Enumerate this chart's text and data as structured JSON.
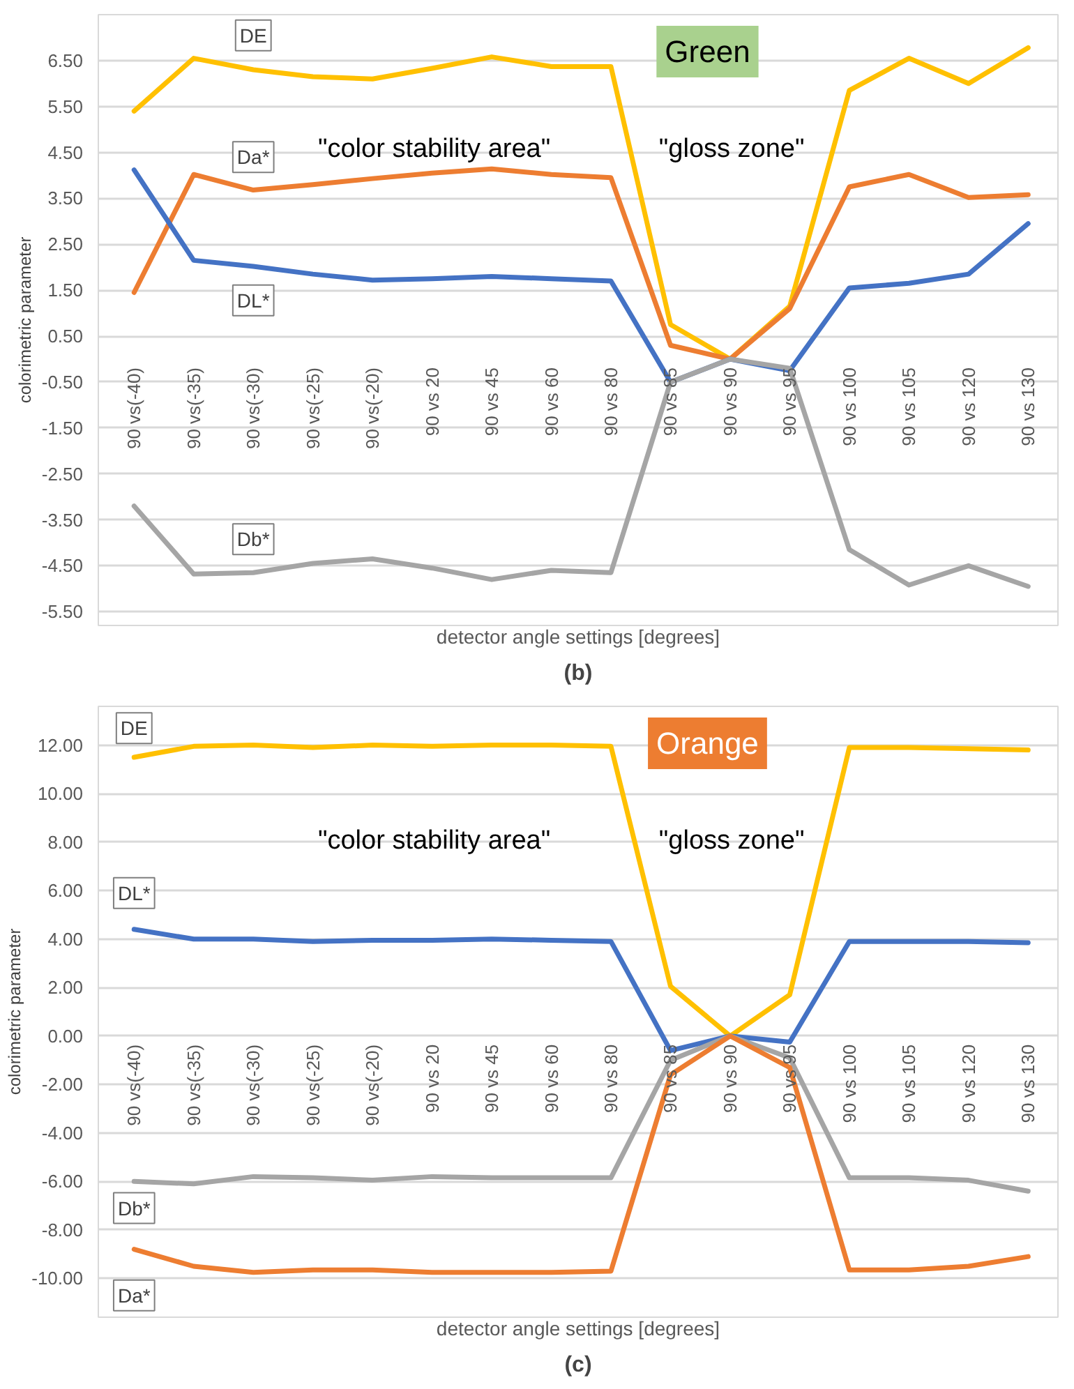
{
  "chart_data": [
    {
      "type": "line",
      "title": "Green",
      "xlabel": "detector angle settings [degrees]",
      "ylabel": "colorimetric parameter",
      "categories": [
        "90 vs(-40)",
        "90 vs(-35)",
        "90 vs(-30)",
        "90 vs(-25)",
        "90 vs(-20)",
        "90 vs 20",
        "90 vs 45",
        "90 vs 60",
        "90 vs 80",
        "90 vs 85",
        "90 vs 90",
        "90 vs 95",
        "90 vs 100",
        "90 vs 105",
        "90 vs 120",
        "90 vs 130"
      ],
      "series": [
        {
          "color": "#ffc000",
          "values": [
            5.4,
            6.55,
            6.3,
            6.15,
            6.1,
            6.33,
            6.58,
            6.37,
            6.37,
            0.75,
            0.0,
            1.15,
            5.85,
            6.55,
            6.0,
            6.78
          ]
        },
        {
          "color": "#ed7d31",
          "values": [
            1.45,
            4.02,
            3.68,
            3.8,
            3.93,
            4.05,
            4.14,
            4.02,
            3.95,
            0.3,
            0.0,
            1.1,
            3.75,
            4.02,
            3.52,
            3.58
          ]
        },
        {
          "color": "#4472c4",
          "values": [
            4.12,
            2.15,
            2.02,
            1.85,
            1.72,
            1.75,
            1.8,
            1.75,
            1.7,
            -0.5,
            0.0,
            -0.25,
            1.55,
            1.65,
            1.85,
            2.95
          ]
        },
        {
          "color": "#a5a5a5",
          "values": [
            -3.2,
            -4.68,
            -4.65,
            -4.45,
            -4.35,
            -4.55,
            -4.8,
            -4.6,
            -4.65,
            -0.5,
            0.0,
            -0.2,
            -4.15,
            -4.92,
            -4.5,
            -4.95
          ]
        }
      ],
      "ylim": [
        -5.8,
        7.5
      ],
      "yticks": [
        {
          "value": -5.5,
          "label": "-5.50"
        },
        {
          "value": -4.5,
          "label": "-4.50"
        },
        {
          "value": -3.5,
          "label": "-3.50"
        },
        {
          "value": -2.5,
          "label": "-2.50"
        },
        {
          "value": -1.5,
          "label": "-1.50"
        },
        {
          "value": -0.5,
          "label": "-0.50"
        },
        {
          "value": 0.5,
          "label": "0.50"
        },
        {
          "value": 1.5,
          "label": "1.50"
        },
        {
          "value": 2.5,
          "label": "2.50"
        },
        {
          "value": 3.5,
          "label": "3.50"
        },
        {
          "value": 4.5,
          "label": "4.50"
        },
        {
          "value": 5.5,
          "label": "5.50"
        },
        {
          "value": 6.5,
          "label": "6.50"
        }
      ],
      "grid": "y",
      "annotations": [
        {
          "text": "DE",
          "x": "90 vs(-30)",
          "y": 7.05
        },
        {
          "text": "Da*",
          "x": "90 vs(-30)",
          "y": 4.4
        },
        {
          "text": "DL*",
          "x": "90 vs(-30)",
          "y": 1.28
        },
        {
          "text": "Db*",
          "x": "90 vs(-30)",
          "y": -3.92
        },
        "\"color stability area\"",
        "\"gloss zone\"",
        "(b)"
      ]
    },
    {
      "type": "line",
      "title": "Orange",
      "xlabel": "detector angle settings [degrees]",
      "ylabel": "colorimetric parameter",
      "categories": [
        "90 vs(-40)",
        "90 vs(-35)",
        "90 vs(-30)",
        "90 vs(-25)",
        "90 vs(-20)",
        "90 vs 20",
        "90 vs 45",
        "90 vs 60",
        "90 vs 80",
        "90 vs 85",
        "90 vs 90",
        "90 vs 95",
        "90 vs 100",
        "90 vs 105",
        "90 vs 120",
        "90 vs 130"
      ],
      "series": [
        {
          "color": "#ffc000",
          "values": [
            11.5,
            11.95,
            12.0,
            11.9,
            12.0,
            11.95,
            12.0,
            12.0,
            11.95,
            2.05,
            0.0,
            1.7,
            11.9,
            11.9,
            11.85,
            11.8
          ]
        },
        {
          "color": "#4472c4",
          "values": [
            4.4,
            4.0,
            4.0,
            3.9,
            3.95,
            3.95,
            4.0,
            3.95,
            3.9,
            -0.6,
            0.0,
            -0.25,
            3.9,
            3.9,
            3.9,
            3.85
          ]
        },
        {
          "color": "#a5a5a5",
          "values": [
            -6.0,
            -6.1,
            -5.8,
            -5.85,
            -5.95,
            -5.8,
            -5.85,
            -5.85,
            -5.85,
            -1.0,
            0.0,
            -0.9,
            -5.85,
            -5.85,
            -5.95,
            -6.4
          ]
        },
        {
          "color": "#ed7d31",
          "values": [
            -8.8,
            -9.5,
            -9.75,
            -9.65,
            -9.65,
            -9.75,
            -9.75,
            -9.75,
            -9.7,
            -1.6,
            0.0,
            -1.3,
            -9.65,
            -9.65,
            -9.5,
            -9.1
          ]
        }
      ],
      "ylim": [
        -11.6,
        13.6
      ],
      "yticks": [
        {
          "value": -10,
          "label": "-10.00"
        },
        {
          "value": -8,
          "label": "-8.00"
        },
        {
          "value": -6,
          "label": "-6.00"
        },
        {
          "value": -4,
          "label": "-4.00"
        },
        {
          "value": -2,
          "label": "-2.00"
        },
        {
          "value": 0,
          "label": "0.00"
        },
        {
          "value": 2,
          "label": "2.00"
        },
        {
          "value": 4,
          "label": "4.00"
        },
        {
          "value": 6,
          "label": "6.00"
        },
        {
          "value": 8,
          "label": "8.00"
        },
        {
          "value": 10,
          "label": "10.00"
        },
        {
          "value": 12,
          "label": "12.00"
        }
      ],
      "grid": "y",
      "annotations": [
        {
          "text": "DE",
          "x": "90 vs(-40)",
          "y": 12.7
        },
        {
          "text": "DL*",
          "x": "90 vs(-40)",
          "y": 5.9
        },
        {
          "text": "Db*",
          "x": "90 vs(-40)",
          "y": -7.1
        },
        {
          "text": "Da*",
          "x": "90 vs(-40)",
          "y": -10.7
        },
        "\"color stability area\"",
        "\"gloss zone\"",
        "(c)"
      ]
    }
  ]
}
